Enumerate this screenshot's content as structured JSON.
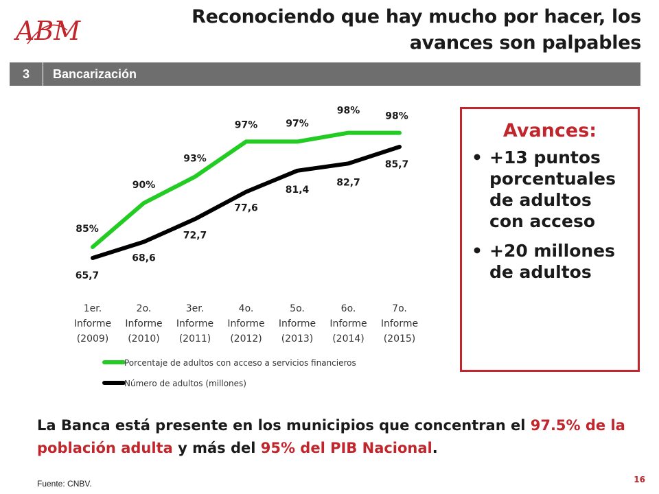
{
  "header": {
    "logo_text": "ABM",
    "title_line1": "Reconociendo que hay mucho por hacer, los",
    "title_line2": "avances son palpables"
  },
  "section": {
    "number": "3",
    "label": "Bancarización"
  },
  "chart_data": {
    "type": "line",
    "categories": [
      [
        "1er.",
        "Informe",
        "(2009)"
      ],
      [
        "2o.",
        "Informe",
        "(2010)"
      ],
      [
        "3er.",
        "Informe",
        "(2011)"
      ],
      [
        "4o.",
        "Informe",
        "(2012)"
      ],
      [
        "5o.",
        "Informe",
        "(2013)"
      ],
      [
        "6o.",
        "Informe",
        "(2014)"
      ],
      [
        "7o.",
        "Informe",
        "(2015)"
      ]
    ],
    "series": [
      {
        "name": "Porcentaje de adultos con acceso a servicios financieros",
        "values": [
          85,
          90,
          93,
          97,
          97,
          98,
          98
        ],
        "labels": [
          "85%",
          "90%",
          "93%",
          "97%",
          "97%",
          "98%",
          "98%"
        ],
        "color": "#22cc22"
      },
      {
        "name": "Número de adultos (millones)",
        "values": [
          65.7,
          68.6,
          72.7,
          77.6,
          81.4,
          82.7,
          85.7
        ],
        "labels": [
          "65,7",
          "68,6",
          "72,7",
          "77,6",
          "81,4",
          "82,7",
          "85,7"
        ],
        "color": "#000000"
      }
    ],
    "legend_position": "bottom",
    "grid": false
  },
  "avances": {
    "title": "Avances:",
    "items": [
      "+13 puntos porcentuales de adultos con acceso",
      "+20 millones de adultos"
    ]
  },
  "footer": {
    "part1": "La Banca está presente en los municipios que concentran el ",
    "part2": "97.5% de la población adulta",
    "part3": " y más del ",
    "part4": "95% del PIB Nacional",
    "part5": "."
  },
  "source": "Fuente: CNBV.",
  "page_number": "16",
  "colors": {
    "accent_red": "#c0262c",
    "section_bar": "#6e6e6e"
  }
}
